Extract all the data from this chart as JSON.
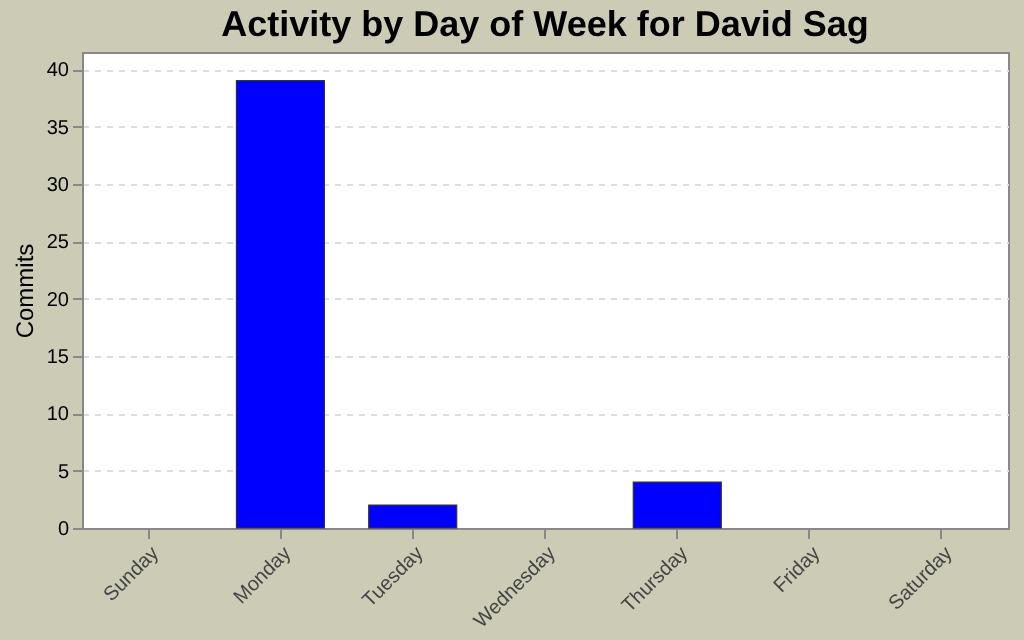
{
  "chart_data": {
    "type": "bar",
    "title": "Activity by Day of Week for David Sag",
    "ylabel": "Commits",
    "categories": [
      "Sunday",
      "Monday",
      "Tuesday",
      "Wednesday",
      "Thursday",
      "Friday",
      "Saturday"
    ],
    "values": [
      0,
      39,
      2,
      0,
      4,
      0,
      0
    ],
    "color": "#0000ff",
    "ylim": [
      0,
      41.5
    ],
    "yticks": [
      0,
      5,
      10,
      15,
      20,
      25,
      30,
      35,
      40
    ],
    "grid": "y"
  }
}
